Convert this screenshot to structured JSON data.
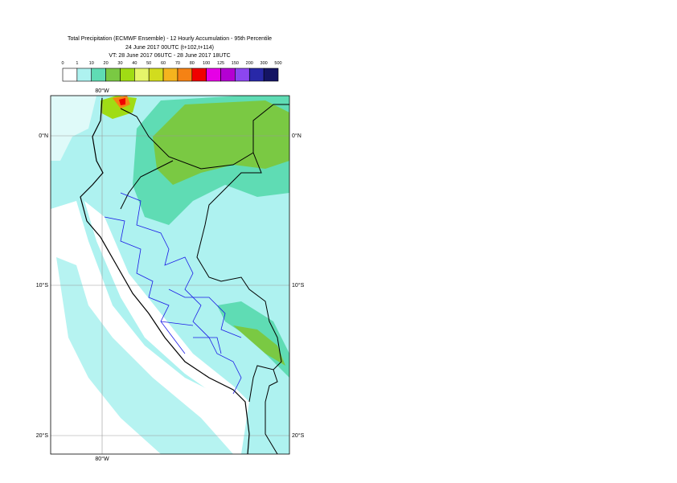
{
  "header": {
    "title": "Total Precipitation (ECMWF Ensemble) - 12 Hourly Accumulation - 95th Percentile",
    "subtitle": "24 June 2017 00UTC (t+102,t+114)",
    "valid_time": "VT: 28 June 2017 06UTC - 28 June 2017 18UTC"
  },
  "legend": {
    "labels": [
      0,
      1,
      10,
      20,
      30,
      40,
      50,
      60,
      70,
      80,
      100,
      125,
      150,
      200,
      300,
      500
    ],
    "colors": [
      "#ffffff",
      "#aef2f0",
      "#5fdcb4",
      "#7ac943",
      "#a0dc14",
      "#e6f56a",
      "#d2dc1e",
      "#f5b41e",
      "#f58214",
      "#f00000",
      "#e600e6",
      "#b400d2",
      "#8c46f0",
      "#2828a8",
      "#141464"
    ]
  },
  "map": {
    "lat_labels": [
      "0°N",
      "10°S",
      "20°S"
    ],
    "lon_label": "80°W"
  }
}
